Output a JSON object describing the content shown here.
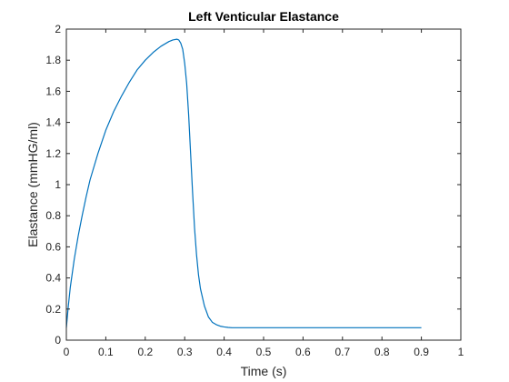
{
  "chart_data": {
    "type": "line",
    "title": "Left Venticular Elastance",
    "xlabel": "Time (s)",
    "ylabel": "Elastance (mmHG/ml)",
    "xlim": [
      0,
      1
    ],
    "ylim": [
      0,
      2
    ],
    "xticks": [
      0,
      0.1,
      0.2,
      0.3,
      0.4,
      0.5,
      0.6,
      0.7,
      0.8,
      0.9,
      1
    ],
    "xtick_labels": [
      "0",
      "0.1",
      "0.2",
      "0.3",
      "0.4",
      "0.5",
      "0.6",
      "0.7",
      "0.8",
      "0.9",
      "1"
    ],
    "yticks": [
      0,
      0.2,
      0.4,
      0.6,
      0.8,
      1,
      1.2,
      1.4,
      1.6,
      1.8,
      2
    ],
    "ytick_labels": [
      "0",
      "0.2",
      "0.4",
      "0.6",
      "0.8",
      "1",
      "1.2",
      "1.4",
      "1.6",
      "1.8",
      "2"
    ],
    "grid": false,
    "line_color": "#0072BD",
    "series": [
      {
        "x": [
          0,
          0.005,
          0.01,
          0.02,
          0.03,
          0.04,
          0.05,
          0.06,
          0.08,
          0.1,
          0.12,
          0.14,
          0.16,
          0.18,
          0.2,
          0.22,
          0.24,
          0.26,
          0.27,
          0.28,
          0.285,
          0.29,
          0.295,
          0.3,
          0.305,
          0.31,
          0.315,
          0.32,
          0.325,
          0.33,
          0.335,
          0.34,
          0.35,
          0.36,
          0.37,
          0.38,
          0.39,
          0.4,
          0.41,
          0.42,
          0.44,
          0.46,
          0.5,
          0.6,
          0.7,
          0.8,
          0.9
        ],
        "y": [
          0.08,
          0.22,
          0.34,
          0.52,
          0.67,
          0.8,
          0.92,
          1.03,
          1.2,
          1.35,
          1.47,
          1.57,
          1.66,
          1.74,
          1.8,
          1.85,
          1.89,
          1.92,
          1.93,
          1.935,
          1.93,
          1.91,
          1.87,
          1.78,
          1.65,
          1.45,
          1.2,
          0.95,
          0.72,
          0.55,
          0.42,
          0.33,
          0.22,
          0.15,
          0.115,
          0.1,
          0.09,
          0.085,
          0.082,
          0.08,
          0.08,
          0.08,
          0.08,
          0.08,
          0.08,
          0.08,
          0.08
        ]
      }
    ]
  }
}
